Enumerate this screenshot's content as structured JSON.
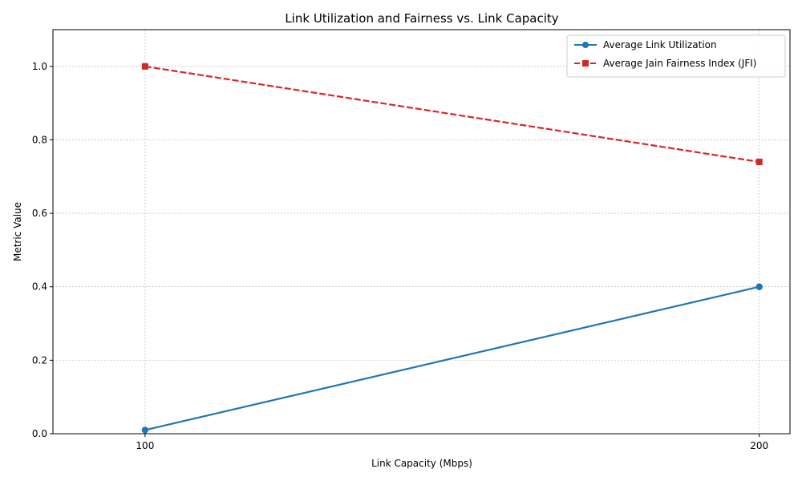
{
  "chart_data": {
    "type": "line",
    "title": "Link Utilization and Fairness vs. Link Capacity",
    "xlabel": "Link Capacity (Mbps)",
    "ylabel": "Metric Value",
    "x": [
      100,
      200
    ],
    "x_ticks": [
      "100",
      "200"
    ],
    "xlim": [
      85,
      205
    ],
    "ylim": [
      0,
      1.1
    ],
    "y_ticks": [
      0.0,
      0.2,
      0.4,
      0.6,
      0.8,
      1.0
    ],
    "y_tick_labels": [
      "0.0",
      "0.2",
      "0.4",
      "0.6",
      "0.8",
      "1.0"
    ],
    "grid": true,
    "legend_position": "top-right",
    "series": [
      {
        "name": "Average Link Utilization",
        "values": [
          0.01,
          0.4
        ],
        "color": "#1f77b4",
        "marker": "circle",
        "line_style": "solid"
      },
      {
        "name": "Average Jain Fairness Index (JFI)",
        "values": [
          1.0,
          0.74
        ],
        "color": "#d62728",
        "marker": "square",
        "line_style": "dashed"
      }
    ]
  }
}
